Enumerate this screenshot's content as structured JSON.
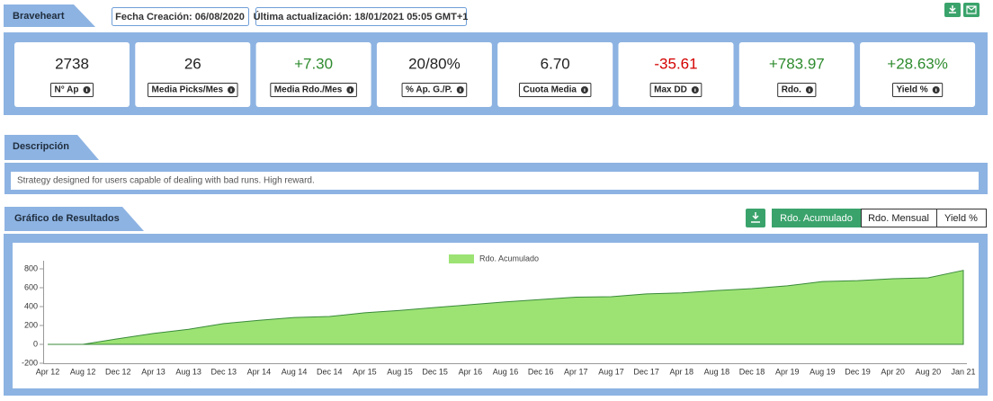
{
  "header": {
    "title": "Braveheart",
    "created": "Fecha Creación: 06/08/2020",
    "updated": "Última actualización: 18/01/2021 05:05 GMT+1"
  },
  "stats": [
    {
      "value": "2738",
      "label": "N° Ap",
      "tone": "neutral"
    },
    {
      "value": "26",
      "label": "Media Picks/Mes",
      "tone": "neutral"
    },
    {
      "value": "+7.30",
      "label": "Media Rdo./Mes",
      "tone": "positive"
    },
    {
      "value": "20/80%",
      "label": "% Ap. G./P.",
      "tone": "neutral"
    },
    {
      "value": "6.70",
      "label": "Cuota Media",
      "tone": "neutral"
    },
    {
      "value": "-35.61",
      "label": "Max DD",
      "tone": "negative"
    },
    {
      "value": "+783.97",
      "label": "Rdo.",
      "tone": "positive"
    },
    {
      "value": "+28.63%",
      "label": "Yield %",
      "tone": "positive"
    }
  ],
  "description": {
    "title": "Descripción",
    "text": "Strategy designed for users capable of dealing with bad runs. High reward."
  },
  "results": {
    "title": "Gráfico de Resultados",
    "tabs": [
      "Rdo. Acumulado",
      "Rdo. Mensual",
      "Yield %"
    ]
  },
  "chart_data": {
    "type": "area",
    "categories": [
      "Apr 12",
      "Aug 12",
      "Dec 12",
      "Apr 13",
      "Aug 13",
      "Dec 13",
      "Apr 14",
      "Aug 14",
      "Dec 14",
      "Apr 15",
      "Aug 15",
      "Dec 15",
      "Apr 16",
      "Aug 16",
      "Dec 16",
      "Apr 17",
      "Aug 17",
      "Dec 17",
      "Apr 18",
      "Aug 18",
      "Dec 18",
      "Apr 19",
      "Aug 19",
      "Dec 19",
      "Apr 20",
      "Aug 20",
      "Jan 21"
    ],
    "series": [
      {
        "name": "Rdo. Acumulado",
        "color": "#9ce374",
        "values": [
          0,
          0,
          60,
          115,
          160,
          220,
          255,
          285,
          295,
          335,
          360,
          390,
          420,
          450,
          475,
          500,
          505,
          535,
          545,
          570,
          590,
          620,
          665,
          675,
          695,
          705,
          784
        ]
      }
    ],
    "ylim": [
      -200,
      800
    ],
    "yticks": [
      -200,
      0,
      200,
      400,
      600,
      800
    ],
    "grid": false
  }
}
